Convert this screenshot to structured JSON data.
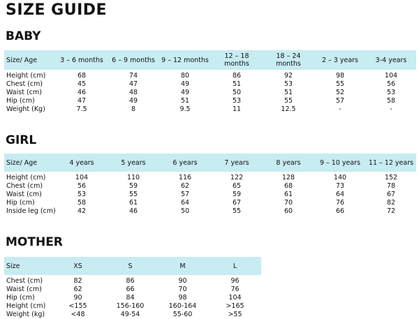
{
  "title": "SIZE GUIDE",
  "sections": {
    "baby": {
      "title": "BABY",
      "headers": [
        "Size/ Age",
        "3 – 6 months",
        "6 – 9 months",
        "9 – 12 months",
        "12 – 18 months",
        "18 – 24 months",
        "2 – 3 years",
        "3-4 years"
      ],
      "rows": [
        [
          "Height (cm)",
          "68",
          "74",
          "80",
          "86",
          "92",
          "98",
          "104"
        ],
        [
          "Chest (cm)",
          "45",
          "47",
          "49",
          "51",
          "53",
          "55",
          "56"
        ],
        [
          "Waist (cm)",
          "46",
          "48",
          "49",
          "50",
          "51",
          "52",
          "53"
        ],
        [
          "Hip (cm)",
          "47",
          "49",
          "51",
          "53",
          "55",
          "57",
          "58"
        ],
        [
          "Weight (Kg)",
          "7.5",
          "8",
          "9.5",
          "11",
          "12.5",
          "-",
          "-"
        ]
      ]
    },
    "girl": {
      "title": "GIRL",
      "headers": [
        "Size/ Age",
        "4 years",
        "5 years",
        "6 years",
        "7 years",
        "8 years",
        "9 – 10 years",
        "11 – 12 years"
      ],
      "rows": [
        [
          "Height (cm)",
          "104",
          "110",
          "116",
          "122",
          "128",
          "140",
          "152"
        ],
        [
          "Chest (cm)",
          "56",
          "59",
          "62",
          "65",
          "68",
          "73",
          "78"
        ],
        [
          "Waist (cm)",
          "53",
          "55",
          "57",
          "59",
          "61",
          "64",
          "67"
        ],
        [
          "Hip (cm)",
          "58",
          "61",
          "64",
          "67",
          "70",
          "76",
          "82"
        ],
        [
          "Inside leg (cm)",
          "42",
          "46",
          "50",
          "55",
          "60",
          "66",
          "72"
        ]
      ]
    },
    "mother": {
      "title": "MOTHER",
      "headers": [
        "Size",
        "XS",
        "S",
        "M",
        "L"
      ],
      "rows": [
        [
          "Chest (cm)",
          "82",
          "86",
          "90",
          "96"
        ],
        [
          "Waist (cm)",
          "62",
          "66",
          "70",
          "76"
        ],
        [
          "Hip (cm)",
          "90",
          "84",
          "98",
          "104"
        ],
        [
          "Height (cm)",
          "<155",
          "156-160",
          "160-164",
          ">165"
        ],
        [
          "Weight (kg)",
          "<48",
          "49-54",
          "55-60",
          ">55"
        ]
      ]
    }
  }
}
